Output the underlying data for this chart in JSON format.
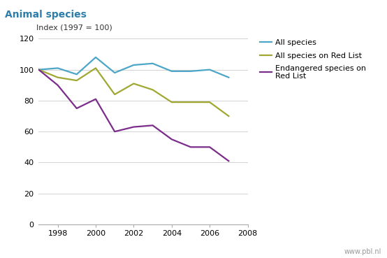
{
  "title": "Animal species",
  "ylabel": "Index (1997 = 100)",
  "years": [
    1997,
    1998,
    1999,
    2000,
    2001,
    2002,
    2003,
    2004,
    2005,
    2006,
    2007
  ],
  "all_species": [
    100,
    101,
    97,
    108,
    98,
    103,
    104,
    99,
    99,
    100,
    95
  ],
  "red_list_all": [
    100,
    95,
    93,
    101,
    84,
    91,
    87,
    79,
    79,
    79,
    70
  ],
  "red_list_endangered": [
    100,
    90,
    75,
    81,
    60,
    63,
    64,
    55,
    50,
    50,
    41
  ],
  "color_all": "#4da6c8",
  "color_red_list_all": "#a0a832",
  "color_endangered": "#7b2d8b",
  "ylim": [
    0,
    120
  ],
  "yticks": [
    0,
    20,
    40,
    60,
    80,
    100,
    120
  ],
  "xticks": [
    1998,
    2000,
    2002,
    2004,
    2006,
    2008
  ],
  "xlim": [
    1997,
    2008
  ],
  "legend_labels": [
    "All species",
    "All species on Red List",
    "Endangered species on\nRed List"
  ],
  "footer": "www.pbl.nl",
  "title_bg_color": "#ddeef6",
  "bg_color": "#ffffff",
  "plot_bg": "#ffffff",
  "title_fontsize": 10,
  "axis_fontsize": 8,
  "legend_fontsize": 8,
  "ylabel_fontsize": 8
}
